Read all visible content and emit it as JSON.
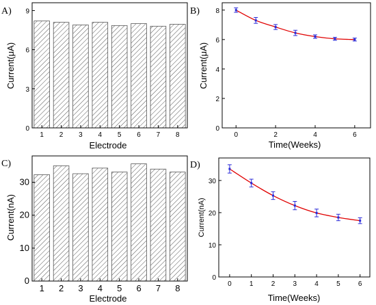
{
  "chart_data": [
    {
      "id": "A",
      "panel_label": "A)",
      "type": "bar",
      "categories": [
        "1",
        "2",
        "3",
        "4",
        "5",
        "6",
        "7",
        "8"
      ],
      "values": [
        8.2,
        8.1,
        7.9,
        8.1,
        7.85,
        8.0,
        7.8,
        7.95
      ],
      "xlabel": "Electrode",
      "ylabel": "Current(μA)",
      "ylim": [
        0,
        9.6
      ],
      "yticks": [
        0,
        3,
        6,
        9
      ],
      "hatch": "diagonal",
      "grid": false
    },
    {
      "id": "B",
      "panel_label": "B)",
      "type": "line",
      "x": [
        0,
        1,
        2,
        3,
        4,
        5,
        6
      ],
      "y": [
        8.0,
        7.3,
        6.85,
        6.45,
        6.2,
        6.05,
        6.0
      ],
      "error": [
        0.15,
        0.2,
        0.17,
        0.18,
        0.12,
        0.1,
        0.1
      ],
      "xlabel": "Time(Weeks)",
      "ylabel": "Current(μA)",
      "xlim": [
        -0.7,
        6.8
      ],
      "ylim": [
        0,
        8.5
      ],
      "xticks": [
        0,
        2,
        4,
        6
      ],
      "yticks": [
        0,
        2,
        4,
        6,
        8
      ],
      "line_color": "#e00000",
      "marker_color": "#2a2ad8",
      "grid": false
    },
    {
      "id": "C",
      "panel_label": "C)",
      "type": "bar",
      "categories": [
        "1",
        "2",
        "3",
        "4",
        "5",
        "6",
        "7",
        "8"
      ],
      "values": [
        32.3,
        35.0,
        32.6,
        34.3,
        33.1,
        35.6,
        34.0,
        33.1
      ],
      "xlabel": "Electrode",
      "ylabel": "Current(nA)",
      "ylim": [
        0,
        38
      ],
      "yticks": [
        0,
        10,
        20,
        30
      ],
      "hatch": "diagonal",
      "grid": false
    },
    {
      "id": "D",
      "panel_label": "D)",
      "type": "line",
      "x": [
        0,
        1,
        2,
        3,
        4,
        5,
        6
      ],
      "y": [
        33.6,
        29.2,
        25.3,
        22.2,
        19.9,
        18.5,
        17.5
      ],
      "error": [
        1.3,
        1.2,
        1.2,
        1.3,
        1.2,
        1.0,
        0.9
      ],
      "xlabel": "Time(Weeks)",
      "ylabel": "Current(nA)",
      "xlim": [
        -0.5,
        6.45
      ],
      "ylim": [
        0,
        37
      ],
      "xticks": [
        0,
        1,
        2,
        3,
        4,
        5,
        6
      ],
      "yticks": [
        0,
        10,
        20,
        30
      ],
      "line_color": "#e00000",
      "marker_color": "#2a2ad8",
      "grid": false
    }
  ]
}
